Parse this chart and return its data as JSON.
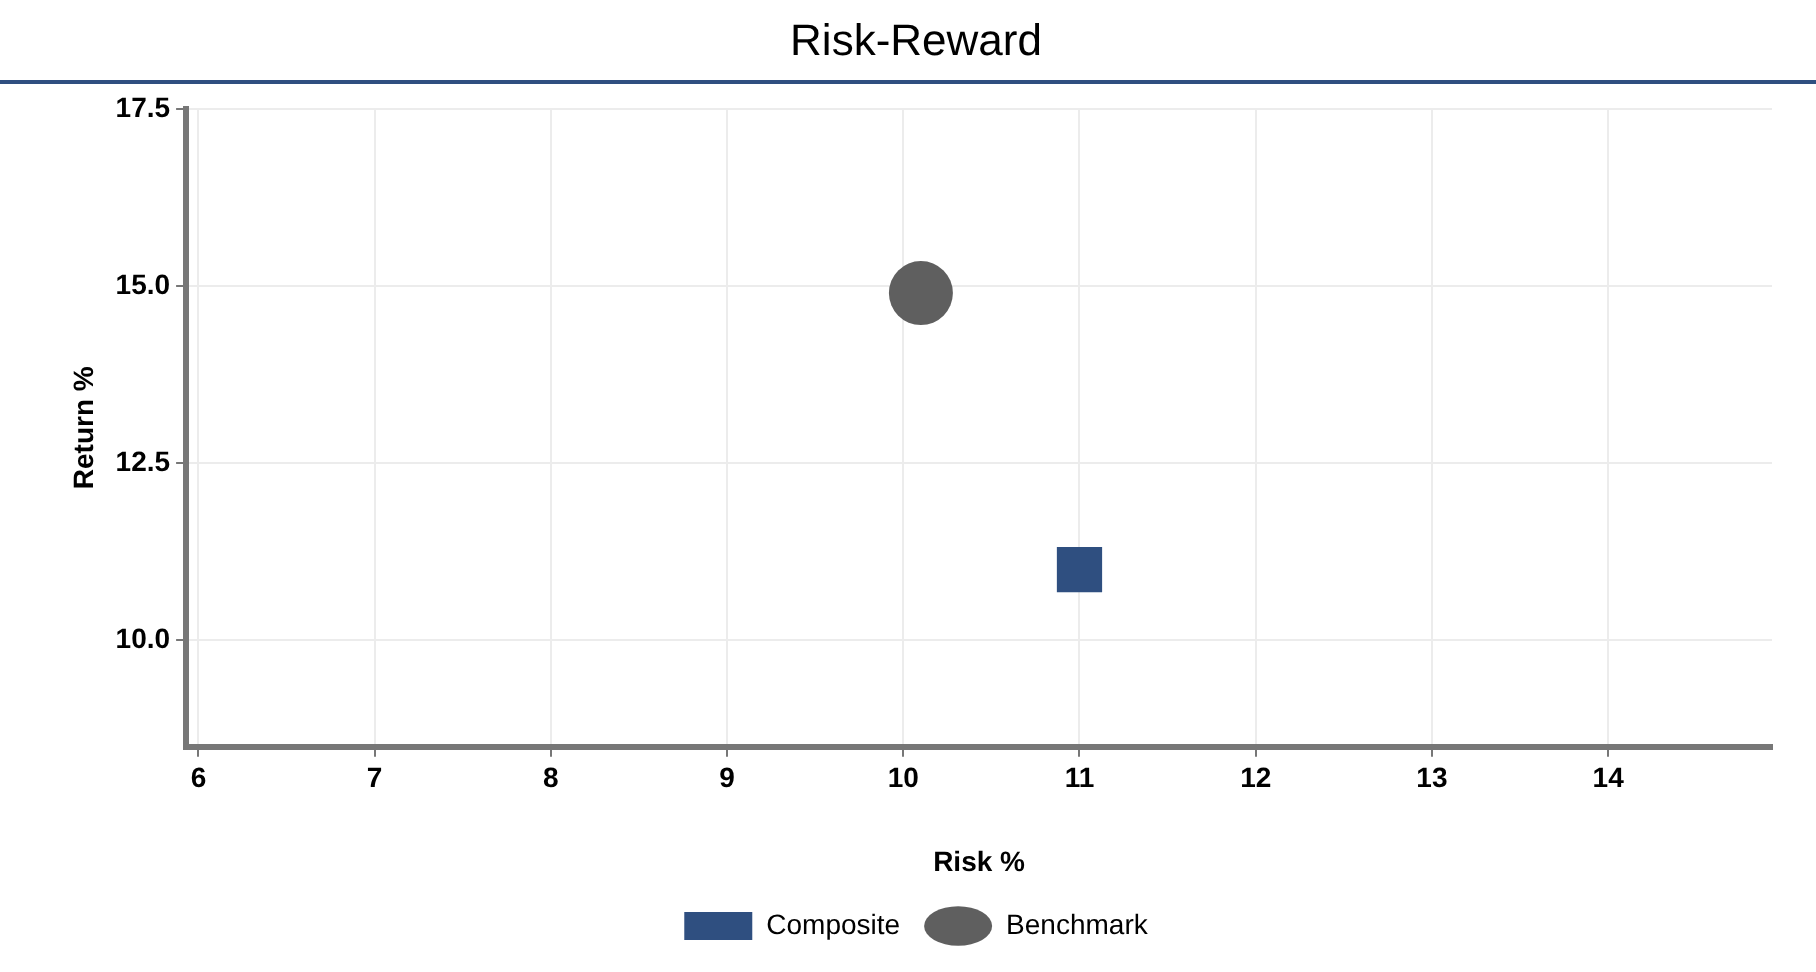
{
  "chart_data": {
    "type": "scatter",
    "title": "Risk-Reward",
    "xlabel": "Risk %",
    "ylabel": "Return %",
    "xlim": [
      5.93,
      14.93
    ],
    "xticks": [
      6,
      7,
      8,
      9,
      10,
      11,
      12,
      13,
      14
    ],
    "ylim": [
      8.5,
      17.5
    ],
    "yticks": [
      {
        "value": 10,
        "label": "10.0"
      },
      12.5,
      {
        "value": 15,
        "label": "15.0"
      },
      17.5
    ],
    "grid": true,
    "legend": "bottom",
    "series": [
      {
        "name": "Composite",
        "color": "#2f4f80",
        "marker": "square",
        "x": [
          11.0
        ],
        "values": [
          11.0
        ]
      },
      {
        "name": "Benchmark",
        "color": "#5f5f5f",
        "marker": "circle",
        "x": [
          10.1
        ],
        "values": [
          14.9
        ]
      }
    ]
  }
}
